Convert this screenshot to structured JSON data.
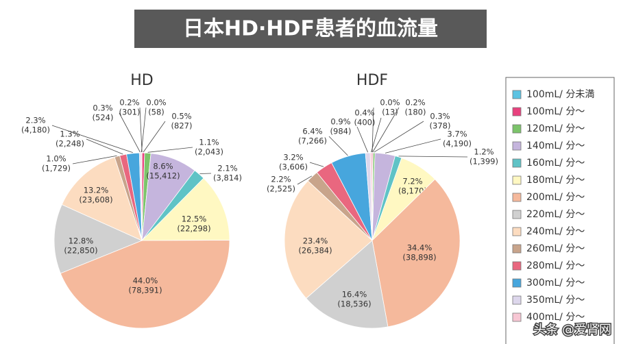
{
  "chart_data": {
    "type": "pie",
    "title": "日本HD·HDF患者的血流量",
    "categories": [
      "100mL/ 分未満",
      "100mL/ 分〜",
      "120mL/ 分〜",
      "140mL/ 分〜",
      "160mL/ 分〜",
      "180mL/ 分〜",
      "200mL/ 分〜",
      "220mL/ 分〜",
      "240mL/ 分〜",
      "260mL/ 分〜",
      "280mL/ 分〜",
      "300mL/ 分〜",
      "350mL/ 分〜",
      "400mL/ 分〜"
    ],
    "colors": [
      "#5cc3e2",
      "#e8417e",
      "#7cc46a",
      "#c5b5dd",
      "#5fc3c6",
      "#fff8c2",
      "#f5b99c",
      "#d0d0d0",
      "#fcdcc0",
      "#c8a48b",
      "#e9677f",
      "#47a6dd",
      "#ddd7ec",
      "#f7c7d4"
    ],
    "series": [
      {
        "name": "HD",
        "values": [
          0.0,
          0.5,
          1.1,
          8.6,
          2.1,
          12.5,
          44.0,
          12.8,
          13.2,
          1.0,
          1.3,
          2.3,
          0.3,
          0.2
        ],
        "value_labels": [
          "0.0%",
          "0.5%",
          "1.1%",
          "8.6%",
          "2.1%",
          "12.5%",
          "44.0%",
          "12.8%",
          "13.2%",
          "1.0%",
          "1.3%",
          "2.3%",
          "0.3%",
          "0.2%"
        ],
        "counts": [
          58,
          827,
          2043,
          15412,
          3814,
          22298,
          78391,
          22850,
          23608,
          1729,
          2248,
          4180,
          524,
          301
        ],
        "count_labels": [
          "(58)",
          "(827)",
          "(2,043)",
          "(15,412)",
          "(3,814)",
          "(22,298)",
          "(78,391)",
          "(22,850)",
          "(23,608)",
          "(1,729)",
          "(2,248)",
          "(4,180)",
          "(524)",
          "(301)"
        ]
      },
      {
        "name": "HDF",
        "values": [
          0.0,
          0.2,
          0.3,
          3.7,
          1.2,
          7.2,
          34.4,
          16.4,
          23.4,
          2.2,
          3.2,
          6.4,
          0.9,
          0.4
        ],
        "value_labels": [
          "0.0%",
          "0.2%",
          "0.3%",
          "3.7%",
          "1.2%",
          "7.2%",
          "34.4%",
          "16.4%",
          "23.4%",
          "2.2%",
          "3.2%",
          "6.4%",
          "0.9%",
          "0.4%"
        ],
        "counts": [
          13,
          180,
          378,
          4190,
          1399,
          8170,
          38898,
          18536,
          26384,
          2525,
          3606,
          7266,
          984,
          400
        ],
        "count_labels": [
          "(13)",
          "(180)",
          "(378)",
          "(4,190)",
          "(1,399)",
          "(8,170)",
          "(38,898)",
          "(18,536)",
          "(26,384)",
          "(2,525)",
          "(3,606)",
          "(7,266)",
          "(984)",
          "(400)"
        ]
      }
    ],
    "watermark": "头条 @爱肾网"
  }
}
